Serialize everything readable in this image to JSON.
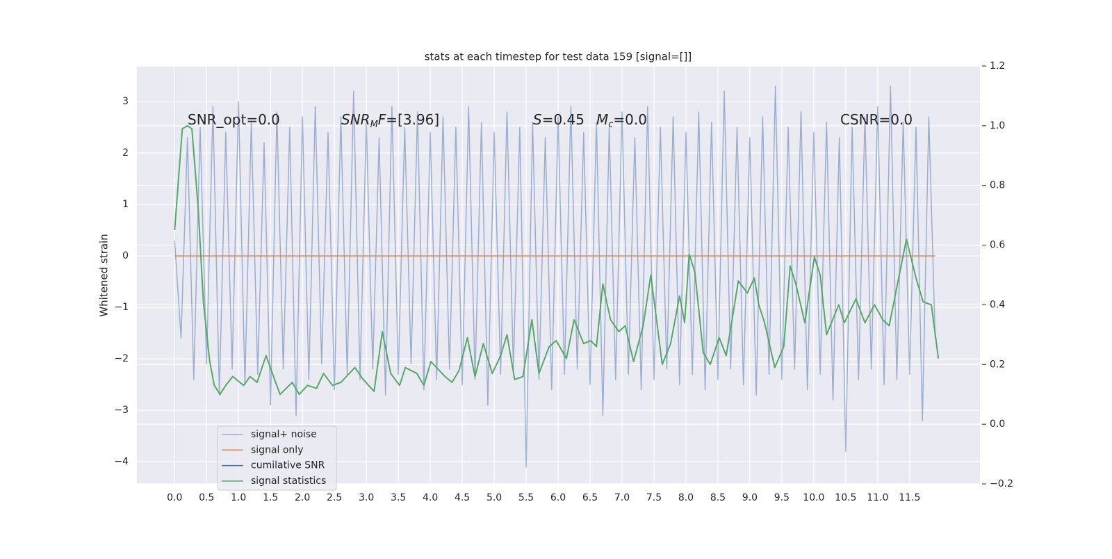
{
  "chart_data": {
    "type": "line",
    "title": "stats at each timestep for test data 159 [signal=[]]",
    "ylabel": "Whitened strain",
    "grid": true,
    "legend": "lower left",
    "xlim": [
      -0.59,
      12.6
    ],
    "ylim": [
      -4.43,
      3.69
    ],
    "y2lim": [
      -0.2,
      1.2
    ],
    "xticks": [
      {
        "value": 0,
        "label": "0.0"
      },
      {
        "value": 0.5,
        "label": "0.5"
      },
      {
        "value": 1,
        "label": "1.0"
      },
      {
        "value": 1.5,
        "label": "1.5"
      },
      {
        "value": 2,
        "label": "2.0"
      },
      {
        "value": 2.5,
        "label": "2.5"
      },
      {
        "value": 3,
        "label": "3.0"
      },
      {
        "value": 3.5,
        "label": "3.5"
      },
      {
        "value": 4,
        "label": "4.0"
      },
      {
        "value": 4.5,
        "label": "4.5"
      },
      {
        "value": 5,
        "label": "5.0"
      },
      {
        "value": 5.5,
        "label": "5.5"
      },
      {
        "value": 6,
        "label": "6.0"
      },
      {
        "value": 6.5,
        "label": "6.5"
      },
      {
        "value": 7,
        "label": "7.0"
      },
      {
        "value": 7.5,
        "label": "7.5"
      },
      {
        "value": 8,
        "label": "8.0"
      },
      {
        "value": 8.5,
        "label": "8.5"
      },
      {
        "value": 9,
        "label": "9.0"
      },
      {
        "value": 9.5,
        "label": "9.5"
      },
      {
        "value": 10,
        "label": "10.0"
      },
      {
        "value": 10.5,
        "label": "10.5"
      },
      {
        "value": 11,
        "label": "11.0"
      },
      {
        "value": 11.5,
        "label": "11.5"
      }
    ],
    "yticks": [
      {
        "value": -4,
        "label": "−4"
      },
      {
        "value": -3,
        "label": "−3"
      },
      {
        "value": -2,
        "label": "−2"
      },
      {
        "value": -1,
        "label": "−1"
      },
      0,
      1,
      2,
      3
    ],
    "y2ticks": [
      {
        "value": -0.2,
        "label": "−0.2"
      },
      {
        "value": 0,
        "label": "0.0"
      },
      {
        "value": 0.2,
        "label": "0.2"
      },
      {
        "value": 0.4,
        "label": "0.4"
      },
      {
        "value": 0.6,
        "label": "0.6"
      },
      {
        "value": 0.8,
        "label": "0.8"
      },
      {
        "value": 1,
        "label": "1.0"
      },
      {
        "value": 1.2,
        "label": "1.2"
      }
    ],
    "annotations": [
      [
        {
          "text": "SNR_opt=0.0",
          "style": "normal"
        }
      ],
      [
        {
          "text": "SNR",
          "style": "italic"
        },
        {
          "text": "M",
          "style": "sub"
        },
        {
          "text": "F",
          "style": "italic"
        },
        {
          "text": "=[3.96]",
          "style": "normal"
        }
      ],
      [
        {
          "text": "S",
          "style": "italic"
        },
        {
          "text": "=0.45",
          "style": "normal"
        }
      ],
      [
        {
          "text": "M",
          "style": "italic"
        },
        {
          "text": "c",
          "style": "sub"
        },
        {
          "text": "=0.0",
          "style": "normal"
        }
      ],
      [
        {
          "text": "CSNR=0.0",
          "style": "normal"
        }
      ]
    ],
    "series": [
      {
        "name": "signal+ noise",
        "color": "#4c72b0",
        "opacity": 0.5,
        "x": [
          0.0,
          0.1,
          0.2,
          0.3,
          0.4,
          0.5,
          0.6,
          0.7,
          0.8,
          0.9,
          1.0,
          1.1,
          1.2,
          1.3,
          1.4,
          1.5,
          1.6,
          1.7,
          1.8,
          1.9,
          2.0,
          2.1,
          2.2,
          2.3,
          2.4,
          2.5,
          2.6,
          2.7,
          2.8,
          2.9,
          3.0,
          3.1,
          3.2,
          3.3,
          3.4,
          3.5,
          3.6,
          3.7,
          3.8,
          3.9,
          4.0,
          4.1,
          4.2,
          4.3,
          4.4,
          4.5,
          4.6,
          4.7,
          4.8,
          4.9,
          5.0,
          5.1,
          5.2,
          5.3,
          5.4,
          5.5,
          5.6,
          5.7,
          5.8,
          5.9,
          6.0,
          6.1,
          6.2,
          6.3,
          6.4,
          6.5,
          6.6,
          6.7,
          6.8,
          6.9,
          7.0,
          7.1,
          7.2,
          7.3,
          7.4,
          7.5,
          7.6,
          7.7,
          7.8,
          7.9,
          8.0,
          8.1,
          8.2,
          8.3,
          8.4,
          8.5,
          8.6,
          8.7,
          8.8,
          8.9,
          9.0,
          9.1,
          9.2,
          9.3,
          9.4,
          9.5,
          9.6,
          9.7,
          9.8,
          9.9,
          10.0,
          10.1,
          10.2,
          10.3,
          10.4,
          10.5,
          10.6,
          10.7,
          10.8,
          10.9,
          11.0,
          11.1,
          11.2,
          11.3,
          11.4,
          11.5,
          11.6,
          11.7,
          11.8,
          11.9
        ],
        "values": [
          0.3,
          -1.6,
          2.3,
          -2.4,
          2.5,
          -2.1,
          2.9,
          -2.7,
          2.4,
          -2.2,
          3.0,
          -2.5,
          2.6,
          -2.3,
          2.2,
          -2.9,
          2.8,
          -2.2,
          2.5,
          -3.1,
          2.7,
          -2.4,
          2.9,
          -2.1,
          2.4,
          -2.6,
          2.7,
          -2.3,
          3.2,
          -2.4,
          2.6,
          -2.2,
          2.3,
          -2.7,
          2.9,
          -2.3,
          2.5,
          -2.1,
          2.8,
          -2.6,
          2.4,
          -2.4,
          2.7,
          -2.2,
          2.5,
          -2.5,
          2.9,
          -2.4,
          2.6,
          -2.9,
          2.4,
          -2.3,
          2.8,
          -2.2,
          2.5,
          -4.1,
          2.6,
          -2.4,
          2.3,
          -2.6,
          2.7,
          -2.3,
          2.9,
          -2.2,
          2.4,
          -2.5,
          2.6,
          -3.1,
          2.5,
          -2.4,
          2.8,
          -2.3,
          2.3,
          -2.6,
          2.9,
          -2.4,
          2.5,
          -2.2,
          2.7,
          -2.5,
          2.4,
          -2.3,
          2.8,
          -2.6,
          2.6,
          -2.4,
          3.2,
          -2.2,
          2.5,
          -2.5,
          2.3,
          -2.7,
          2.7,
          -2.3,
          3.3,
          -2.4,
          2.5,
          -2.2,
          2.8,
          -2.6,
          2.4,
          -2.3,
          2.6,
          -2.8,
          2.3,
          -3.8,
          2.5,
          -2.4,
          2.7,
          -2.2,
          2.9,
          -2.5,
          3.3,
          -2.4,
          2.6,
          -2.3,
          2.5,
          -3.2,
          2.7,
          -1.6
        ]
      },
      {
        "name": "signal only",
        "color": "#dd8452",
        "x": [
          0.0,
          11.9
        ],
        "values": [
          0,
          0
        ]
      },
      {
        "name": "cumilative SNR",
        "color": "#4c72b0",
        "x": [],
        "values": []
      },
      {
        "name": "signal statistics",
        "color": "#55a868",
        "axis": "y2",
        "x": [
          0,
          0.12,
          0.2,
          0.27,
          0.37,
          0.45,
          0.55,
          0.62,
          0.71,
          0.8,
          0.91,
          1.02,
          1.08,
          1.18,
          1.29,
          1.43,
          1.58,
          1.65,
          1.84,
          1.95,
          2.08,
          2.22,
          2.33,
          2.47,
          2.6,
          2.82,
          2.95,
          3.12,
          3.25,
          3.38,
          3.52,
          3.61,
          3.79,
          3.9,
          4.01,
          4.23,
          4.34,
          4.45,
          4.58,
          4.7,
          4.83,
          4.97,
          5.1,
          5.2,
          5.32,
          5.45,
          5.59,
          5.7,
          5.86,
          5.97,
          6.13,
          6.25,
          6.4,
          6.51,
          6.6,
          6.7,
          6.82,
          6.95,
          7.05,
          7.18,
          7.33,
          7.45,
          7.63,
          7.76,
          7.9,
          7.98,
          8.05,
          8.14,
          8.27,
          8.38,
          8.52,
          8.63,
          8.82,
          8.96,
          9.07,
          9.14,
          9.23,
          9.39,
          9.53,
          9.63,
          9.72,
          9.86,
          10.01,
          10.1,
          10.2,
          10.39,
          10.48,
          10.66,
          10.8,
          10.95,
          11.08,
          11.18,
          11.45,
          11.6,
          11.71,
          11.84,
          11.95
        ],
        "values": [
          0.65,
          0.99,
          1.0,
          0.99,
          0.72,
          0.41,
          0.21,
          0.13,
          0.1,
          0.13,
          0.16,
          0.14,
          0.13,
          0.16,
          0.14,
          0.23,
          0.14,
          0.1,
          0.14,
          0.1,
          0.13,
          0.12,
          0.17,
          0.13,
          0.14,
          0.19,
          0.15,
          0.11,
          0.31,
          0.17,
          0.13,
          0.19,
          0.17,
          0.13,
          0.21,
          0.16,
          0.14,
          0.18,
          0.29,
          0.16,
          0.27,
          0.17,
          0.23,
          0.3,
          0.15,
          0.16,
          0.35,
          0.17,
          0.26,
          0.28,
          0.22,
          0.35,
          0.27,
          0.28,
          0.26,
          0.47,
          0.35,
          0.31,
          0.33,
          0.21,
          0.33,
          0.5,
          0.2,
          0.27,
          0.43,
          0.34,
          0.57,
          0.51,
          0.24,
          0.2,
          0.29,
          0.23,
          0.48,
          0.44,
          0.49,
          0.4,
          0.34,
          0.19,
          0.26,
          0.53,
          0.47,
          0.34,
          0.56,
          0.5,
          0.3,
          0.4,
          0.34,
          0.42,
          0.34,
          0.4,
          0.35,
          0.33,
          0.62,
          0.49,
          0.41,
          0.4,
          0.22
        ]
      }
    ]
  }
}
